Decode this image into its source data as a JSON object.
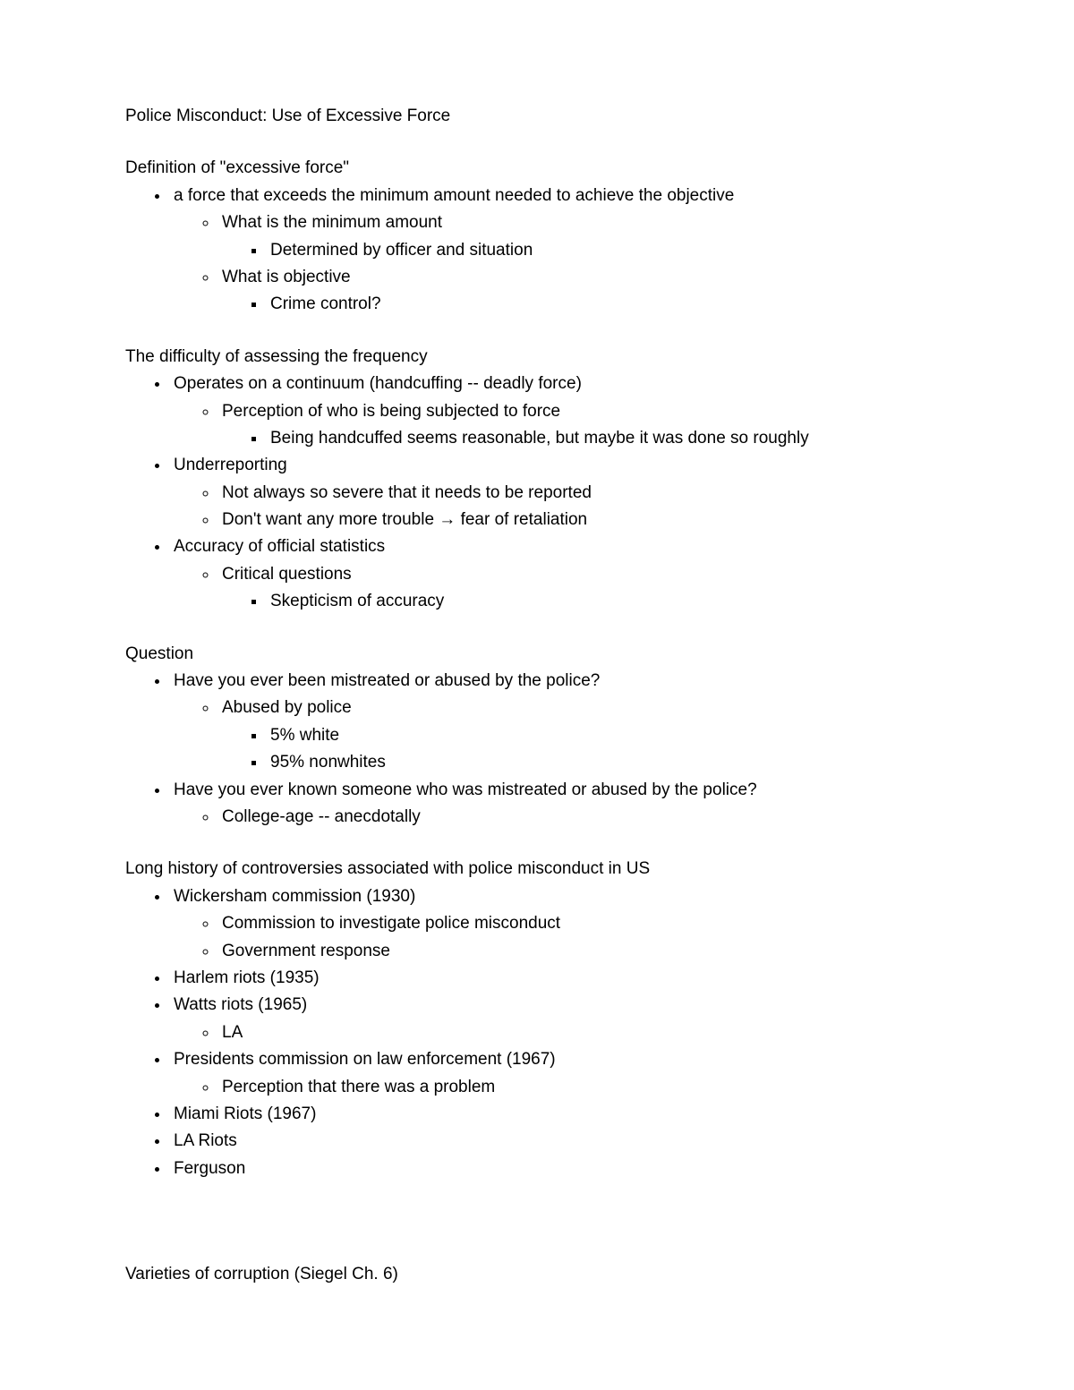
{
  "title": "Police Misconduct: Use of Excessive Force",
  "sections": [
    {
      "header": "Definition of \"excessive force\"",
      "items": [
        {
          "text": "a force that exceeds the minimum amount needed to achieve the objective",
          "children": [
            {
              "text": "What is the minimum amount",
              "children": [
                {
                  "text": "Determined by officer and situation"
                }
              ]
            },
            {
              "text": "What is objective",
              "children": [
                {
                  "text": "Crime control?"
                }
              ]
            }
          ]
        }
      ]
    },
    {
      "header": "The difficulty of assessing the frequency",
      "items": [
        {
          "text": "Operates on a continuum (handcuffing -- deadly force)",
          "children": [
            {
              "text": "Perception of who is being subjected to force",
              "children": [
                {
                  "text": "Being handcuffed seems reasonable, but maybe it was done so roughly"
                }
              ]
            }
          ]
        },
        {
          "text": "Underreporting",
          "children": [
            {
              "text": "Not always so severe that it needs to be reported"
            },
            {
              "text": "Don't want any more trouble → fear of retaliation"
            }
          ]
        },
        {
          "text": "Accuracy of official statistics",
          "children": [
            {
              "text": "Critical questions",
              "children": [
                {
                  "text": "Skepticism of accuracy"
                }
              ]
            }
          ]
        }
      ]
    },
    {
      "header": "Question",
      "items": [
        {
          "text": "Have you ever been mistreated or abused by the police?",
          "children": [
            {
              "text": "Abused by police",
              "children": [
                {
                  "text": "5% white"
                },
                {
                  "text": "95% nonwhites"
                }
              ]
            }
          ]
        },
        {
          "text": "Have you ever known someone who was mistreated or abused by the police?",
          "children": [
            {
              "text": "College-age -- anecdotally"
            }
          ]
        }
      ]
    },
    {
      "header": "Long history of controversies associated with police misconduct in US",
      "items": [
        {
          "text": "Wickersham commission (1930)",
          "children": [
            {
              "text": "Commission to investigate police misconduct"
            },
            {
              "text": "Government response"
            }
          ]
        },
        {
          "text": "Harlem riots (1935)"
        },
        {
          "text": "Watts riots (1965)",
          "children": [
            {
              "text": "LA"
            }
          ]
        },
        {
          "text": "Presidents commission on law enforcement (1967)",
          "children": [
            {
              "text": "Perception that there was a problem"
            }
          ]
        },
        {
          "text": "Miami Riots (1967)"
        },
        {
          "text": "LA Riots"
        },
        {
          "text": "Ferguson"
        }
      ]
    }
  ],
  "footer": "Varieties of corruption (Siegel Ch. 6)"
}
